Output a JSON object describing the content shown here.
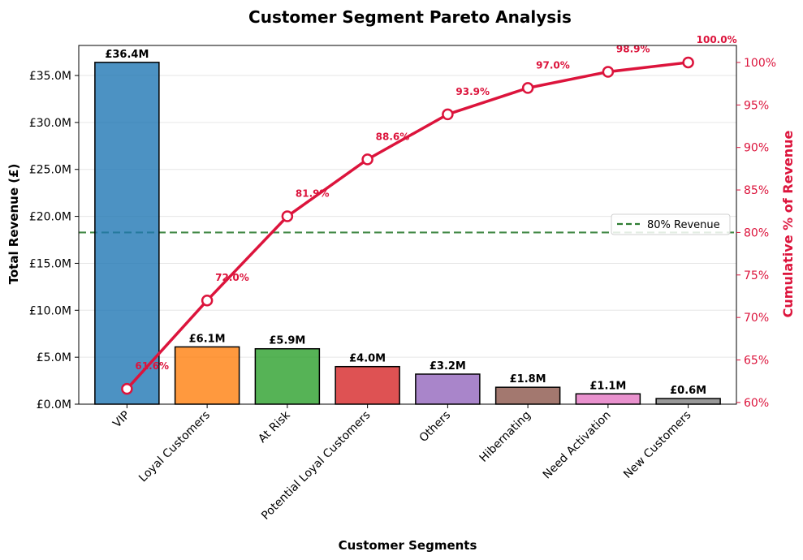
{
  "chart_data": {
    "type": "bar",
    "title": "Customer Segment Pareto Analysis",
    "xlabel": "Customer Segments",
    "ylabel": "Total Revenue (£)",
    "y2label": "Cumulative % of Revenue",
    "categories": [
      "VIP",
      "Loyal Customers",
      "At Risk",
      "Potential Loyal Customers",
      "Others",
      "Hibernating",
      "Need Activation",
      "New Customers"
    ],
    "series": [
      {
        "type": "bar",
        "axis": "left",
        "values": [
          36.4,
          6.1,
          5.9,
          4.0,
          3.2,
          1.8,
          1.1,
          0.6
        ],
        "labels": [
          "£36.4M",
          "£6.1M",
          "£5.9M",
          "£4.0M",
          "£3.2M",
          "£1.8M",
          "£1.1M",
          "£0.6M"
        ],
        "colors": [
          "#1f77b4",
          "#ff7f0e",
          "#2ca02c",
          "#d62728",
          "#9467bd",
          "#8c564b",
          "#e377c2",
          "#7f7f7f"
        ]
      },
      {
        "type": "line",
        "axis": "right",
        "values": [
          61.6,
          72.0,
          81.9,
          88.6,
          93.9,
          97.0,
          98.9,
          100.0
        ],
        "labels": [
          "61.6%",
          "72.0%",
          "81.9%",
          "88.6%",
          "93.9%",
          "97.0%",
          "98.9%",
          "100.0%"
        ],
        "color": "#dc143c"
      }
    ],
    "reference_line": {
      "value": 80,
      "axis": "right",
      "label": "80% Revenue",
      "color": "#2e7d32"
    },
    "ylim": [
      0,
      38.2
    ],
    "y2lim": [
      59.8,
      102.0
    ],
    "yticks": [
      0,
      5,
      10,
      15,
      20,
      25,
      30,
      35
    ],
    "ytick_labels": [
      "£0.0M",
      "£5.0M",
      "£10.0M",
      "£15.0M",
      "£20.0M",
      "£25.0M",
      "£30.0M",
      "£35.0M"
    ],
    "y2ticks": [
      60,
      65,
      70,
      75,
      80,
      85,
      90,
      95,
      100
    ],
    "y2tick_labels": [
      "60%",
      "65%",
      "70%",
      "75%",
      "80%",
      "85%",
      "90%",
      "95%",
      "100%"
    ],
    "grid": "horizontal",
    "legend": "center-right"
  }
}
